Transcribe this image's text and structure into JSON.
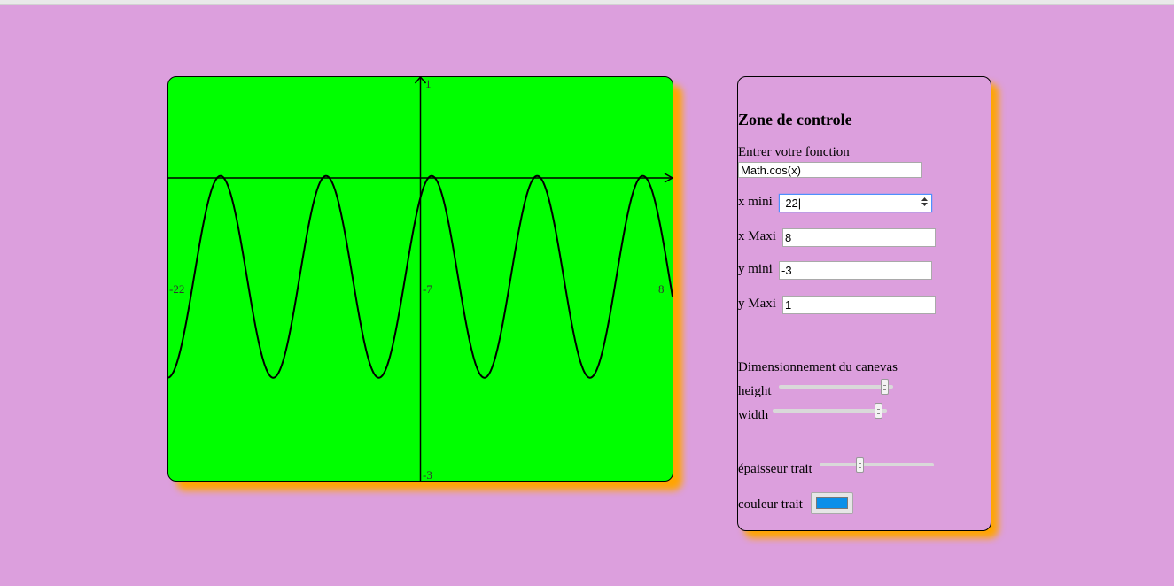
{
  "canvas": {
    "background": "#00ff00",
    "tick_labels": {
      "x_min": "-22",
      "x_mid": "-7",
      "x_max": "8",
      "y_max": "1",
      "y_min": "-3"
    }
  },
  "chart_data": {
    "type": "line",
    "function": "Math.cos(x)",
    "xlim": [
      -22,
      8
    ],
    "ylim": [
      -3,
      1
    ],
    "line_color": "#000000",
    "grid": false
  },
  "panel": {
    "title": "Zone de controle",
    "function_label": "Entrer votre fonction",
    "function_value": "Math.cos(x)",
    "xmin_label": "x mini",
    "xmin_value": "-22",
    "xmax_label": "x Maxi",
    "xmax_value": "8",
    "ymin_label": "y mini",
    "ymin_value": "-3",
    "ymax_label": "y Maxi",
    "ymax_value": "1",
    "canvas_size_label": "Dimensionnement du canevas",
    "height_label": "height",
    "height_level": 0.96,
    "width_label": "width",
    "width_level": 0.96,
    "thickness_label": "épaisseur trait",
    "thickness_level": 0.34,
    "color_label": "couleur trait",
    "color_value": "#0a8fe8"
  }
}
